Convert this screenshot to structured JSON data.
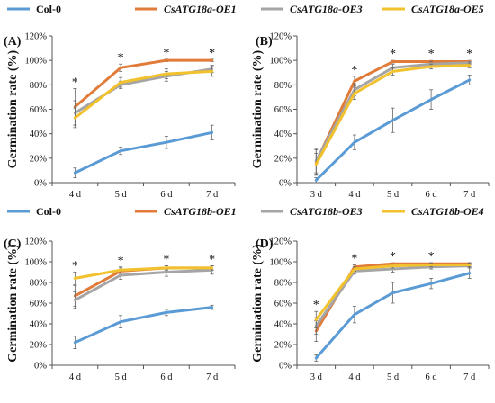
{
  "colors": {
    "Col-0": "#5b9bd5",
    "OE1": "#e07b39",
    "OE3": "#a5a5a5",
    "OE4": "#f2c12e"
  },
  "legends": [
    {
      "items": [
        {
          "label": "Col-0",
          "italic": false,
          "color": "#5b9bd5"
        },
        {
          "label": "CsATG18a-OE1",
          "italic": true,
          "color": "#e07b39"
        },
        {
          "label": "CsATG18a-OE3",
          "italic": true,
          "color": "#a5a5a5"
        },
        {
          "label": "CsATG18a-OE5",
          "italic": true,
          "color": "#f2c12e"
        }
      ]
    },
    {
      "items": [
        {
          "label": "Col-0",
          "italic": false,
          "color": "#5b9bd5"
        },
        {
          "label": "CsATG18b-OE1",
          "italic": true,
          "color": "#e07b39"
        },
        {
          "label": "CsATG18b-OE3",
          "italic": true,
          "color": "#a5a5a5"
        },
        {
          "label": "CsATG18b-OE4",
          "italic": true,
          "color": "#f2c12e"
        }
      ]
    }
  ],
  "chart_data": [
    {
      "type": "line",
      "panel_label": "(A)",
      "ylabel": "Germination rate (%)",
      "ylim": [
        0,
        120
      ],
      "yticks": [
        "0%",
        "20%",
        "40%",
        "60%",
        "80%",
        "100%",
        "120%"
      ],
      "categories": [
        "4 d",
        "5 d",
        "6 d",
        "7 d"
      ],
      "grid": false,
      "series": [
        {
          "color": "#5b9bd5",
          "values": [
            8,
            26,
            33,
            41
          ],
          "errors": [
            4,
            3,
            5,
            6
          ]
        },
        {
          "color": "#e07b39",
          "values": [
            62,
            94,
            100,
            100
          ],
          "errors": [
            15,
            3,
            1,
            1
          ]
        },
        {
          "color": "#a5a5a5",
          "values": [
            57,
            80,
            87,
            93
          ],
          "errors": [
            10,
            3,
            4,
            3
          ]
        },
        {
          "color": "#f2c12e",
          "values": [
            53,
            82,
            89,
            91
          ],
          "errors": [
            8,
            4,
            4,
            4
          ]
        }
      ],
      "significance": [
        "*",
        "*",
        "*",
        "*"
      ]
    },
    {
      "type": "line",
      "panel_label": "(B)",
      "ylabel": "Germination rate (%)",
      "ylim": [
        0,
        120
      ],
      "yticks": [
        "0%",
        "20%",
        "40%",
        "60%",
        "80%",
        "100%",
        "120%"
      ],
      "categories": [
        "3 d",
        "4 d",
        "5 d",
        "6 d",
        "7 d"
      ],
      "grid": false,
      "series": [
        {
          "color": "#5b9bd5",
          "values": [
            2,
            33,
            51,
            68,
            84
          ],
          "errors": [
            2,
            6,
            10,
            8,
            4
          ]
        },
        {
          "color": "#e07b39",
          "values": [
            17,
            83,
            99,
            99,
            99
          ],
          "errors": [
            10,
            4,
            1,
            1,
            1
          ]
        },
        {
          "color": "#a5a5a5",
          "values": [
            18,
            76,
            94,
            97,
            98
          ],
          "errors": [
            10,
            5,
            3,
            2,
            1
          ]
        },
        {
          "color": "#f2c12e",
          "values": [
            15,
            73,
            91,
            95,
            96
          ],
          "errors": [
            9,
            5,
            3,
            2,
            2
          ]
        }
      ],
      "significance": [
        "",
        "*",
        "*",
        "*",
        "*"
      ]
    },
    {
      "type": "line",
      "panel_label": "(C)",
      "ylabel": "Germination rate (%)",
      "ylim": [
        0,
        120
      ],
      "yticks": [
        "0%",
        "20%",
        "40%",
        "60%",
        "80%",
        "100%",
        "120%"
      ],
      "categories": [
        "4 d",
        "5 d",
        "6 d",
        "7 d"
      ],
      "grid": false,
      "series": [
        {
          "color": "#5b9bd5",
          "values": [
            22,
            42,
            51,
            56
          ],
          "errors": [
            6,
            6,
            3,
            2
          ]
        },
        {
          "color": "#e07b39",
          "values": [
            67,
            91,
            94,
            94
          ],
          "errors": [
            10,
            3,
            2,
            2
          ]
        },
        {
          "color": "#a5a5a5",
          "values": [
            63,
            87,
            90,
            92
          ],
          "errors": [
            8,
            4,
            4,
            4
          ]
        },
        {
          "color": "#f2c12e",
          "values": [
            84,
            92,
            94,
            94
          ],
          "errors": [
            6,
            3,
            2,
            2
          ]
        }
      ],
      "significance": [
        "*",
        "*",
        "*",
        "*"
      ]
    },
    {
      "type": "line",
      "panel_label": "(D)",
      "ylabel": "Germination rate (%)",
      "ylim": [
        0,
        120
      ],
      "yticks": [
        "0%",
        "20%",
        "40%",
        "60%",
        "80%",
        "100%",
        "120%"
      ],
      "categories": [
        "3 d",
        "4 d",
        "5 d",
        "6 d",
        "7 d"
      ],
      "grid": false,
      "series": [
        {
          "color": "#5b9bd5",
          "values": [
            7,
            49,
            70,
            79,
            89
          ],
          "errors": [
            3,
            8,
            10,
            5,
            5
          ]
        },
        {
          "color": "#e07b39",
          "values": [
            33,
            95,
            98,
            98,
            98
          ],
          "errors": [
            10,
            2,
            1,
            1,
            1
          ]
        },
        {
          "color": "#a5a5a5",
          "values": [
            38,
            91,
            93,
            95,
            96
          ],
          "errors": [
            8,
            3,
            3,
            2,
            2
          ]
        },
        {
          "color": "#f2c12e",
          "values": [
            44,
            93,
            96,
            97,
            97
          ],
          "errors": [
            8,
            2,
            2,
            2,
            2
          ]
        }
      ],
      "significance": [
        "*",
        "*",
        "*",
        "*",
        ""
      ]
    }
  ]
}
